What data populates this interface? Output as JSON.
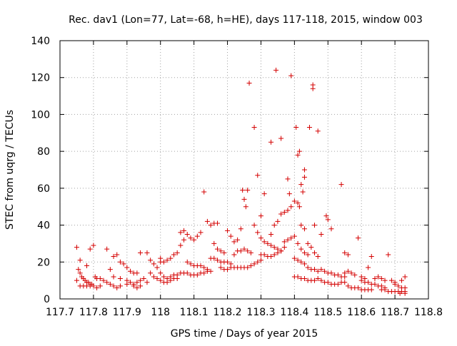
{
  "chart_data": {
    "type": "scatter",
    "title": "Rec. dav1 (Lon=77, Lat=-68, h=HE), days 117-118, 2015, window 003",
    "xlabel": "GPS time / Days of year 2015",
    "ylabel": "STEC from uqrg / TECUs",
    "xlim": [
      117.7,
      118.8
    ],
    "ylim": [
      0,
      140
    ],
    "x_ticks": [
      117.7,
      117.8,
      117.9,
      118.0,
      118.1,
      118.2,
      118.3,
      118.4,
      118.5,
      118.6,
      118.7,
      118.8
    ],
    "x_tick_labels": [
      "117.7",
      "117.8",
      "117.9",
      "118",
      "118.1",
      "118.2",
      "118.3",
      "118.4",
      "118.5",
      "118.6",
      "118.7",
      "118.8"
    ],
    "y_ticks": [
      0,
      20,
      40,
      60,
      80,
      100,
      120,
      140
    ],
    "y_tick_labels": [
      "0",
      "20",
      "40",
      "60",
      "80",
      "100",
      "120",
      "140"
    ],
    "grid": true,
    "marker": "plus",
    "color": "#d40000",
    "series": [
      {
        "points": [
          [
            117.75,
            28
          ],
          [
            117.755,
            16
          ],
          [
            117.76,
            14
          ],
          [
            117.765,
            12
          ],
          [
            117.77,
            11
          ],
          [
            117.775,
            10
          ],
          [
            117.78,
            9
          ],
          [
            117.785,
            9
          ],
          [
            117.79,
            8
          ],
          [
            117.795,
            8
          ],
          [
            117.75,
            10
          ],
          [
            117.76,
            7
          ],
          [
            117.77,
            7
          ],
          [
            117.78,
            7
          ],
          [
            117.79,
            7
          ],
          [
            117.8,
            7
          ],
          [
            117.81,
            6
          ],
          [
            117.82,
            7
          ],
          [
            117.76,
            21
          ],
          [
            117.78,
            18
          ],
          [
            117.79,
            27
          ],
          [
            117.8,
            29
          ],
          [
            117.805,
            12
          ],
          [
            117.81,
            11
          ],
          [
            117.82,
            11
          ],
          [
            117.83,
            10
          ],
          [
            117.84,
            9
          ],
          [
            117.85,
            8
          ],
          [
            117.84,
            27
          ],
          [
            117.86,
            23
          ],
          [
            117.87,
            24
          ],
          [
            117.88,
            20
          ],
          [
            117.89,
            19
          ],
          [
            117.9,
            17
          ],
          [
            117.91,
            15
          ],
          [
            117.92,
            14
          ],
          [
            117.93,
            14
          ],
          [
            117.85,
            16
          ],
          [
            117.86,
            12
          ],
          [
            117.88,
            11
          ],
          [
            117.9,
            10
          ],
          [
            117.91,
            9
          ],
          [
            117.92,
            8
          ],
          [
            117.93,
            9
          ],
          [
            117.94,
            10
          ],
          [
            117.95,
            11
          ],
          [
            117.86,
            7
          ],
          [
            117.87,
            6
          ],
          [
            117.88,
            7
          ],
          [
            117.9,
            8
          ],
          [
            117.92,
            7
          ],
          [
            117.93,
            6
          ],
          [
            117.94,
            7
          ],
          [
            117.96,
            9
          ],
          [
            117.94,
            25
          ],
          [
            117.96,
            25
          ],
          [
            117.97,
            21
          ],
          [
            117.98,
            19
          ],
          [
            117.99,
            17
          ],
          [
            117.97,
            14
          ],
          [
            117.98,
            12
          ],
          [
            117.99,
            11
          ],
          [
            118.0,
            22
          ],
          [
            118.0,
            20
          ],
          [
            118.01,
            20
          ],
          [
            118.02,
            21
          ],
          [
            118.03,
            22
          ],
          [
            118.04,
            24
          ],
          [
            118.05,
            25
          ],
          [
            118.06,
            29
          ],
          [
            118.07,
            32
          ],
          [
            118.0,
            14
          ],
          [
            118.01,
            12
          ],
          [
            118.02,
            11
          ],
          [
            118.03,
            12
          ],
          [
            118.04,
            13
          ],
          [
            118.05,
            13
          ],
          [
            118.06,
            14
          ],
          [
            118.07,
            14
          ],
          [
            118.0,
            10
          ],
          [
            118.01,
            9
          ],
          [
            118.02,
            9
          ],
          [
            118.03,
            10
          ],
          [
            118.04,
            11
          ],
          [
            118.05,
            11
          ],
          [
            118.06,
            36
          ],
          [
            118.07,
            37
          ],
          [
            118.08,
            35
          ],
          [
            118.09,
            33
          ],
          [
            118.1,
            32
          ],
          [
            118.11,
            34
          ],
          [
            118.12,
            36
          ],
          [
            118.13,
            58
          ],
          [
            118.08,
            20
          ],
          [
            118.09,
            19
          ],
          [
            118.1,
            18
          ],
          [
            118.11,
            18
          ],
          [
            118.12,
            18
          ],
          [
            118.13,
            17
          ],
          [
            118.14,
            16
          ],
          [
            118.08,
            14
          ],
          [
            118.09,
            13
          ],
          [
            118.1,
            13
          ],
          [
            118.11,
            13
          ],
          [
            118.12,
            14
          ],
          [
            118.13,
            14
          ],
          [
            118.14,
            15
          ],
          [
            118.15,
            15
          ],
          [
            118.14,
            42
          ],
          [
            118.15,
            40
          ],
          [
            118.16,
            41
          ],
          [
            118.17,
            41
          ],
          [
            118.16,
            30
          ],
          [
            118.17,
            27
          ],
          [
            118.18,
            26
          ],
          [
            118.19,
            25
          ],
          [
            118.15,
            22
          ],
          [
            118.16,
            22
          ],
          [
            118.17,
            21
          ],
          [
            118.18,
            20
          ],
          [
            118.19,
            20
          ],
          [
            118.2,
            20
          ],
          [
            118.21,
            19
          ],
          [
            118.18,
            17
          ],
          [
            118.19,
            16
          ],
          [
            118.2,
            16
          ],
          [
            118.21,
            17
          ],
          [
            118.22,
            17
          ],
          [
            118.23,
            17
          ],
          [
            118.24,
            17
          ],
          [
            118.2,
            37
          ],
          [
            118.21,
            34
          ],
          [
            118.22,
            31
          ],
          [
            118.23,
            32
          ],
          [
            118.24,
            38
          ],
          [
            118.245,
            59
          ],
          [
            118.25,
            54
          ],
          [
            118.255,
            50
          ],
          [
            118.26,
            59
          ],
          [
            118.22,
            24
          ],
          [
            118.23,
            26
          ],
          [
            118.24,
            26
          ],
          [
            118.25,
            27
          ],
          [
            118.26,
            26
          ],
          [
            118.27,
            25
          ],
          [
            118.25,
            17
          ],
          [
            118.26,
            17
          ],
          [
            118.27,
            18
          ],
          [
            118.28,
            19
          ],
          [
            118.29,
            20
          ],
          [
            118.3,
            21
          ],
          [
            118.265,
            117
          ],
          [
            118.28,
            93
          ],
          [
            118.29,
            67
          ],
          [
            118.3,
            45
          ],
          [
            118.31,
            57
          ],
          [
            118.33,
            85
          ],
          [
            118.345,
            124
          ],
          [
            118.36,
            87
          ],
          [
            118.38,
            65
          ],
          [
            118.39,
            121
          ],
          [
            118.28,
            40
          ],
          [
            118.29,
            36
          ],
          [
            118.3,
            33
          ],
          [
            118.31,
            31
          ],
          [
            118.32,
            30
          ],
          [
            118.33,
            29
          ],
          [
            118.34,
            28
          ],
          [
            118.35,
            27
          ],
          [
            118.36,
            26
          ],
          [
            118.3,
            24
          ],
          [
            118.31,
            24
          ],
          [
            118.32,
            23
          ],
          [
            118.33,
            23
          ],
          [
            118.34,
            24
          ],
          [
            118.35,
            25
          ],
          [
            118.36,
            26
          ],
          [
            118.37,
            28
          ],
          [
            118.33,
            35
          ],
          [
            118.34,
            40
          ],
          [
            118.35,
            42
          ],
          [
            118.36,
            46
          ],
          [
            118.37,
            47
          ],
          [
            118.38,
            48
          ],
          [
            118.385,
            57
          ],
          [
            118.39,
            50
          ],
          [
            118.37,
            31
          ],
          [
            118.38,
            32
          ],
          [
            118.39,
            33
          ],
          [
            118.4,
            34
          ],
          [
            118.41,
            30
          ],
          [
            118.42,
            27
          ],
          [
            118.43,
            25
          ],
          [
            118.44,
            24
          ],
          [
            118.405,
            93
          ],
          [
            118.41,
            78
          ],
          [
            118.415,
            80
          ],
          [
            118.42,
            62
          ],
          [
            118.425,
            58
          ],
          [
            118.43,
            70
          ],
          [
            118.43,
            66
          ],
          [
            118.445,
            93
          ],
          [
            118.455,
            116
          ],
          [
            118.455,
            114
          ],
          [
            118.47,
            91
          ],
          [
            118.4,
            53
          ],
          [
            118.41,
            52
          ],
          [
            118.415,
            50
          ],
          [
            118.42,
            40
          ],
          [
            118.43,
            38
          ],
          [
            118.44,
            30
          ],
          [
            118.45,
            28
          ],
          [
            118.46,
            40
          ],
          [
            118.4,
            22
          ],
          [
            118.41,
            21
          ],
          [
            118.42,
            20
          ],
          [
            118.43,
            19
          ],
          [
            118.44,
            17
          ],
          [
            118.45,
            16
          ],
          [
            118.46,
            16
          ],
          [
            118.47,
            15
          ],
          [
            118.4,
            12
          ],
          [
            118.41,
            12
          ],
          [
            118.42,
            11
          ],
          [
            118.43,
            11
          ],
          [
            118.44,
            10
          ],
          [
            118.45,
            10
          ],
          [
            118.46,
            10
          ],
          [
            118.47,
            11
          ],
          [
            118.46,
            25
          ],
          [
            118.47,
            23
          ],
          [
            118.48,
            35
          ],
          [
            118.495,
            45
          ],
          [
            118.5,
            43
          ],
          [
            118.51,
            38
          ],
          [
            118.54,
            62
          ],
          [
            118.55,
            25
          ],
          [
            118.56,
            24
          ],
          [
            118.48,
            16
          ],
          [
            118.49,
            15
          ],
          [
            118.5,
            14
          ],
          [
            118.51,
            14
          ],
          [
            118.52,
            13
          ],
          [
            118.53,
            13
          ],
          [
            118.54,
            12
          ],
          [
            118.55,
            12
          ],
          [
            118.48,
            10
          ],
          [
            118.49,
            9
          ],
          [
            118.5,
            9
          ],
          [
            118.51,
            8
          ],
          [
            118.52,
            8
          ],
          [
            118.53,
            8
          ],
          [
            118.54,
            9
          ],
          [
            118.55,
            9
          ],
          [
            118.55,
            14
          ],
          [
            118.56,
            15
          ],
          [
            118.57,
            14
          ],
          [
            118.58,
            13
          ],
          [
            118.59,
            33
          ],
          [
            118.6,
            12
          ],
          [
            118.61,
            11
          ],
          [
            118.62,
            17
          ],
          [
            118.56,
            7
          ],
          [
            118.57,
            6
          ],
          [
            118.58,
            6
          ],
          [
            118.59,
            6
          ],
          [
            118.6,
            5
          ],
          [
            118.61,
            5
          ],
          [
            118.62,
            5
          ],
          [
            118.63,
            5
          ],
          [
            118.6,
            10
          ],
          [
            118.61,
            9
          ],
          [
            118.62,
            9
          ],
          [
            118.63,
            8
          ],
          [
            118.64,
            8
          ],
          [
            118.65,
            7
          ],
          [
            118.66,
            7
          ],
          [
            118.67,
            6
          ],
          [
            118.63,
            23
          ],
          [
            118.64,
            11
          ],
          [
            118.65,
            12
          ],
          [
            118.66,
            11
          ],
          [
            118.67,
            10
          ],
          [
            118.68,
            24
          ],
          [
            118.69,
            10
          ],
          [
            118.7,
            9
          ],
          [
            118.66,
            5
          ],
          [
            118.67,
            5
          ],
          [
            118.68,
            4
          ],
          [
            118.69,
            4
          ],
          [
            118.7,
            4
          ],
          [
            118.71,
            4
          ],
          [
            118.72,
            4
          ],
          [
            118.73,
            4
          ],
          [
            118.7,
            8
          ],
          [
            118.71,
            7
          ],
          [
            118.72,
            6
          ],
          [
            118.73,
            6
          ],
          [
            118.73,
            12
          ],
          [
            118.72,
            10
          ],
          [
            118.715,
            3
          ],
          [
            118.73,
            3
          ]
        ]
      }
    ]
  }
}
